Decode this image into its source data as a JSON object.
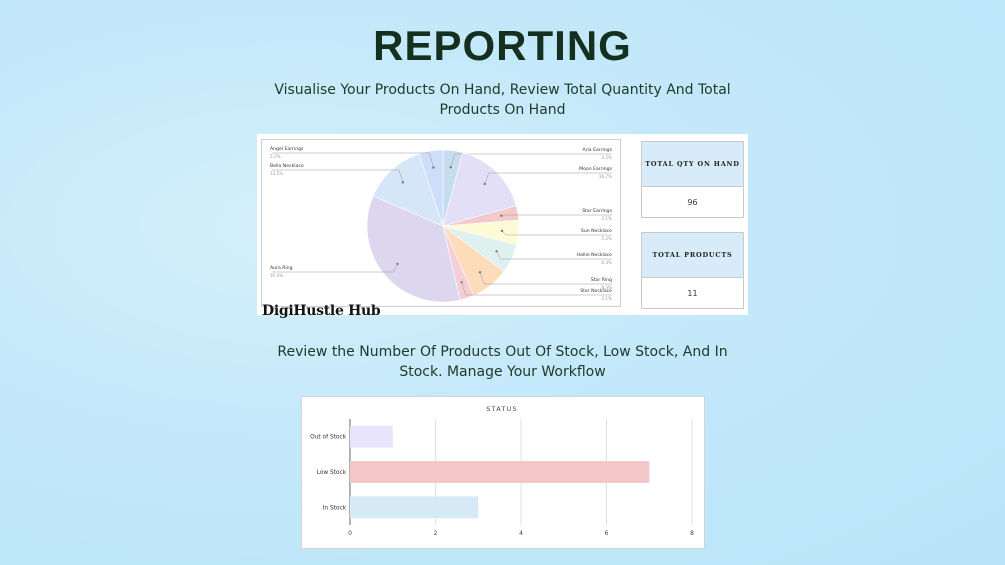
{
  "header": {
    "title": "REPORTING",
    "subtitle": "Visualise Your Products On Hand, Review Total Quantity And Total Products On Hand",
    "subtitle2": "Review the Number Of Products Out Of Stock, Low Stock, And In Stock. Manage Your Workflow"
  },
  "brand": "DigiHustle Hub",
  "stats": {
    "qty_label": "TOTAL QTY ON HAND",
    "qty_value": "96",
    "products_label": "TOTAL PRODUCTS",
    "products_value": "11"
  },
  "chart_data": [
    {
      "type": "pie",
      "slices": [
        {
          "label": "Aria Earrings",
          "pct": "4.2%",
          "value": 4.2,
          "color": "#c6dcef"
        },
        {
          "label": "Moon Earrings",
          "pct": "16.7%",
          "value": 16.7,
          "color": "#e2dff7"
        },
        {
          "label": "Star Earrings",
          "pct": "3.1%",
          "value": 3.1,
          "color": "#f4c9cc"
        },
        {
          "label": "Sun Necklace",
          "pct": "5.2%",
          "value": 5.2,
          "color": "#fdfad6"
        },
        {
          "label": "Hallie Necklace",
          "pct": "6.3%",
          "value": 6.3,
          "color": "#dff1ee"
        },
        {
          "label": "Star Ring",
          "pct": "8.3%",
          "value": 8.3,
          "color": "#fcdcbb"
        },
        {
          "label": "Star Necklace",
          "pct": "3.1%",
          "value": 3.1,
          "color": "#f6cfd6"
        },
        {
          "label": "Aura Ring",
          "pct": "35.4%",
          "value": 35.4,
          "color": "#dcd6ee"
        },
        {
          "label": "Bella Necklace",
          "pct": "13.5%",
          "value": 13.5,
          "color": "#d4e6f7"
        },
        {
          "label": "Angel Earrings",
          "pct": "5.2%",
          "value": 5.2,
          "color": "#cdddfa"
        }
      ]
    },
    {
      "type": "bar",
      "orientation": "horizontal",
      "title": "STATUS",
      "categories": [
        "Out of Stock",
        "Low Stock",
        "In Stock"
      ],
      "values": [
        1,
        7,
        3
      ],
      "colors": [
        "#e8e4fb",
        "#f5c6c8",
        "#d6eaf6"
      ],
      "xlim": [
        0,
        8
      ],
      "xticks": [
        "0",
        "2",
        "4",
        "6",
        "8"
      ]
    }
  ]
}
